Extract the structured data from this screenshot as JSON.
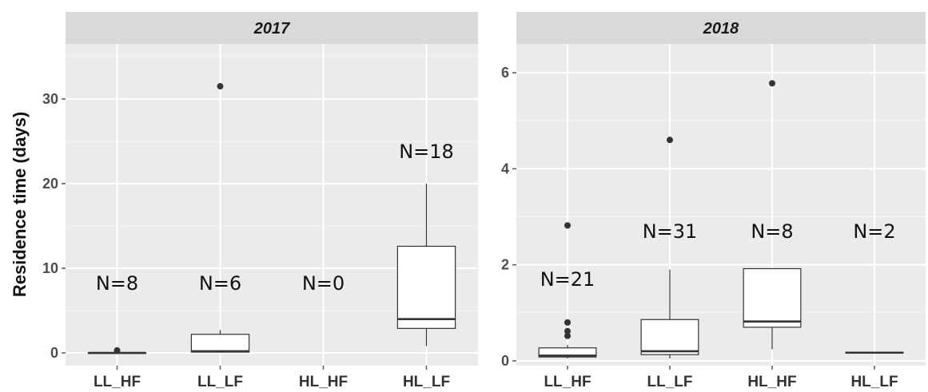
{
  "chart_data": {
    "type": "box",
    "ylabel": "Residence time (days)",
    "categories": [
      "LL_HF",
      "LL_LF",
      "HL_HF",
      "HL_LF"
    ],
    "panels": [
      {
        "title": "2017",
        "ylim": [
          -1.5,
          36.5
        ],
        "yticks": [
          0,
          10,
          20,
          30
        ],
        "boxes": [
          {
            "category": "LL_HF",
            "n_label": "N=8",
            "min": 0.0,
            "q1": 0.0,
            "median": 0.0,
            "q3": 0.0,
            "max": 0.0,
            "outliers": [
              0.3
            ]
          },
          {
            "category": "LL_LF",
            "n_label": "N=6",
            "min": 0.1,
            "q1": 0.1,
            "median": 0.2,
            "q3": 2.2,
            "max": 2.7,
            "outliers": [
              31.5
            ]
          },
          {
            "category": "HL_HF",
            "n_label": "N=0",
            "min": null,
            "q1": null,
            "median": null,
            "q3": null,
            "max": null,
            "outliers": []
          },
          {
            "category": "HL_LF",
            "n_label": "N=18",
            "min": 0.8,
            "q1": 2.9,
            "median": 4.0,
            "q3": 12.6,
            "max": 20.0,
            "outliers": []
          }
        ]
      },
      {
        "title": "2018",
        "ylim": [
          -0.1,
          6.6
        ],
        "yticks": [
          0,
          2,
          4,
          6
        ],
        "boxes": [
          {
            "category": "LL_HF",
            "n_label": "N=21",
            "min": 0.05,
            "q1": 0.08,
            "median": 0.11,
            "q3": 0.27,
            "max": 0.33,
            "outliers": [
              2.82,
              0.8,
              0.62,
              0.52
            ]
          },
          {
            "category": "LL_LF",
            "n_label": "N=31",
            "min": 0.05,
            "q1": 0.13,
            "median": 0.2,
            "q3": 0.86,
            "max": 1.9,
            "outliers": [
              4.6
            ]
          },
          {
            "category": "HL_HF",
            "n_label": "N=8",
            "min": 0.24,
            "q1": 0.7,
            "median": 0.82,
            "q3": 1.92,
            "max": 1.92,
            "outliers": [
              5.78
            ]
          },
          {
            "category": "HL_LF",
            "n_label": "N=2",
            "min": 0.16,
            "q1": 0.16,
            "median": 0.17,
            "q3": 0.18,
            "max": 0.18,
            "outliers": []
          }
        ]
      }
    ],
    "grid": true,
    "facet_strips": "top"
  }
}
